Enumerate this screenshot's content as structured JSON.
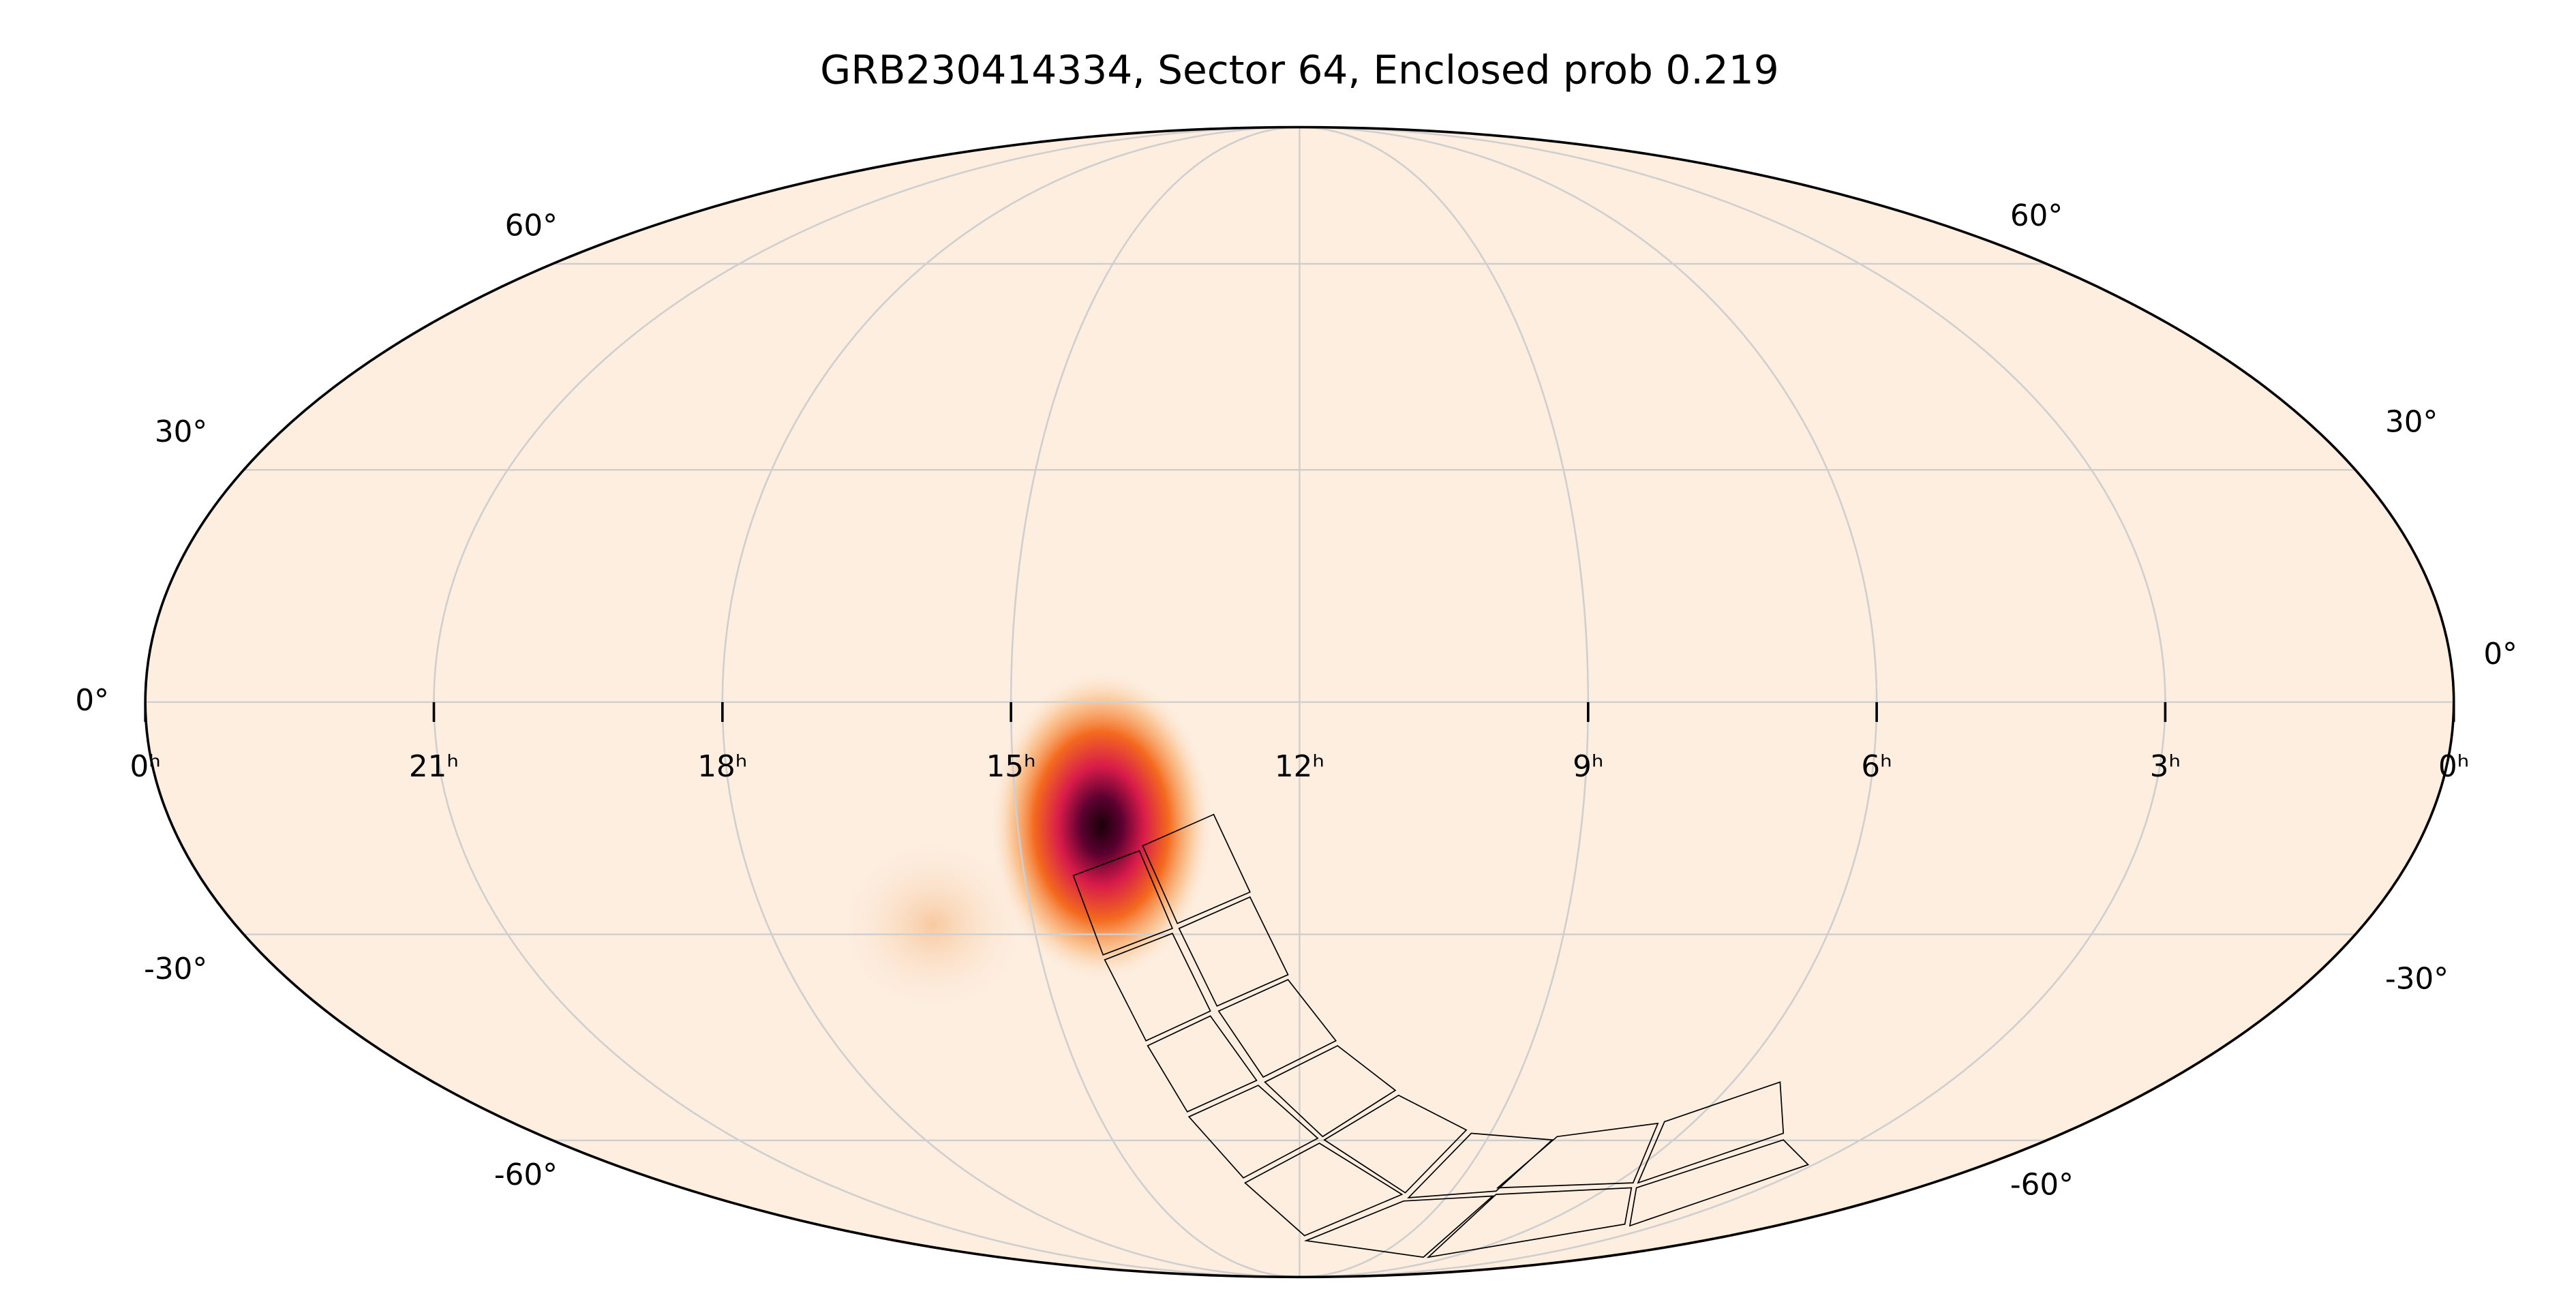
{
  "chart_data": {
    "type": "mollweide",
    "title": "GRB230414334, Sector 64, Enclosed prob 0.219",
    "xlim": [
      24,
      0
    ],
    "xticks": [
      {
        "value": 24,
        "label": "0ʰ"
      },
      {
        "value": 21,
        "label": "21ʰ"
      },
      {
        "value": 18,
        "label": "18ʰ"
      },
      {
        "value": 15,
        "label": "15ʰ"
      },
      {
        "value": 12,
        "label": "12ʰ"
      },
      {
        "value": 9,
        "label": "9ʰ"
      },
      {
        "value": 6,
        "label": "6ʰ"
      },
      {
        "value": 3,
        "label": "3ʰ"
      },
      {
        "value": 0,
        "label": "0ʰ"
      }
    ],
    "ylim": [
      -90,
      90
    ],
    "yticks": [
      {
        "value": 60,
        "label": "60°"
      },
      {
        "value": 30,
        "label": "30°"
      },
      {
        "value": 0,
        "label": "0°"
      },
      {
        "value": -30,
        "label": "-30°"
      },
      {
        "value": -60,
        "label": "-60°"
      }
    ],
    "y2ticks": [
      {
        "value": 60,
        "label": "60°"
      },
      {
        "value": 30,
        "label": "30°"
      },
      {
        "value": 0,
        "label": "0°"
      },
      {
        "value": -30,
        "label": "-30°"
      },
      {
        "value": -60,
        "label": "-60°"
      }
    ],
    "grid": true,
    "color": "#fdeee0"
  }
}
